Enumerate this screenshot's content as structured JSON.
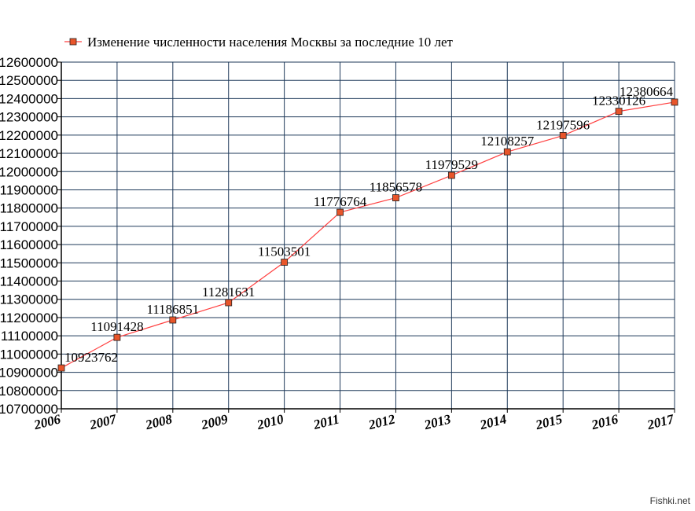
{
  "chart_data": {
    "type": "line",
    "title": "",
    "xlabel": "",
    "ylabel": "",
    "x": [
      "2006",
      "2007",
      "2008",
      "2009",
      "2010",
      "2011",
      "2012",
      "2013",
      "2014",
      "2015",
      "2016",
      "2017"
    ],
    "series": [
      {
        "name": "Изменение численности населения Москвы за последние 10 лет",
        "values": [
          10923762,
          11091428,
          11186851,
          11281631,
          11503501,
          11776764,
          11856578,
          11979529,
          12108257,
          12197596,
          12330126,
          12380664
        ],
        "color": "#ff5a3c",
        "marker_color": "#e8552a",
        "line_color": "#ff4040"
      }
    ],
    "data_labels": [
      "10923762",
      "11091428",
      "11186851",
      "11281631",
      "11503501",
      "11776764",
      "11856578",
      "11979529",
      "12108257",
      "12197596",
      "12330126",
      "12380664"
    ],
    "ylim": [
      10700000,
      12600000
    ],
    "yticks": [
      "10700000",
      "10800000",
      "10900000",
      "11000000",
      "11100000",
      "11200000",
      "11300000",
      "11400000",
      "11500000",
      "11600000",
      "11700000",
      "11800000",
      "11900000",
      "12000000",
      "12100000",
      "12200000",
      "12300000",
      "12400000",
      "12500000",
      "12600000"
    ],
    "grid": true,
    "grid_color": "#1f3a5a",
    "legend_position": "top"
  },
  "watermark": "Fishki.net"
}
